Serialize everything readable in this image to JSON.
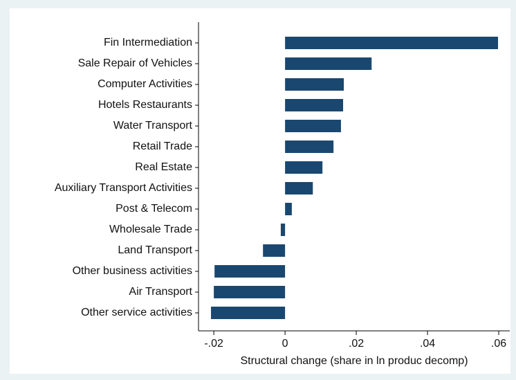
{
  "chart_data": {
    "type": "bar",
    "orientation": "horizontal",
    "x_label": "Structural change (share in ln produc decomp)",
    "categories": [
      "Fin Intermediation",
      "Sale Repair of Vehicles",
      "Computer Activities",
      "Hotels Restaurants",
      "Water Transport",
      "Retail Trade",
      "Real Estate",
      "Auxiliary Transport Activities",
      "Post & Telecom",
      "Wholesale Trade",
      "Land Transport",
      "Other business activities",
      "Air Transport",
      "Other service activities"
    ],
    "values": [
      0.0598,
      0.0243,
      0.0165,
      0.0163,
      0.0157,
      0.0136,
      0.0105,
      0.0078,
      0.0019,
      -0.0012,
      -0.0062,
      -0.0198,
      -0.02,
      -0.0208
    ],
    "color": "#1a476f",
    "xlim": [
      -0.0243,
      0.0631
    ],
    "xticks": [
      {
        "value": -0.02,
        "label": "-.02"
      },
      0,
      {
        "value": 0.02,
        "label": ".02"
      },
      {
        "value": 0.04,
        "label": ".04"
      },
      {
        "value": 0.06,
        "label": ".06"
      }
    ]
  }
}
